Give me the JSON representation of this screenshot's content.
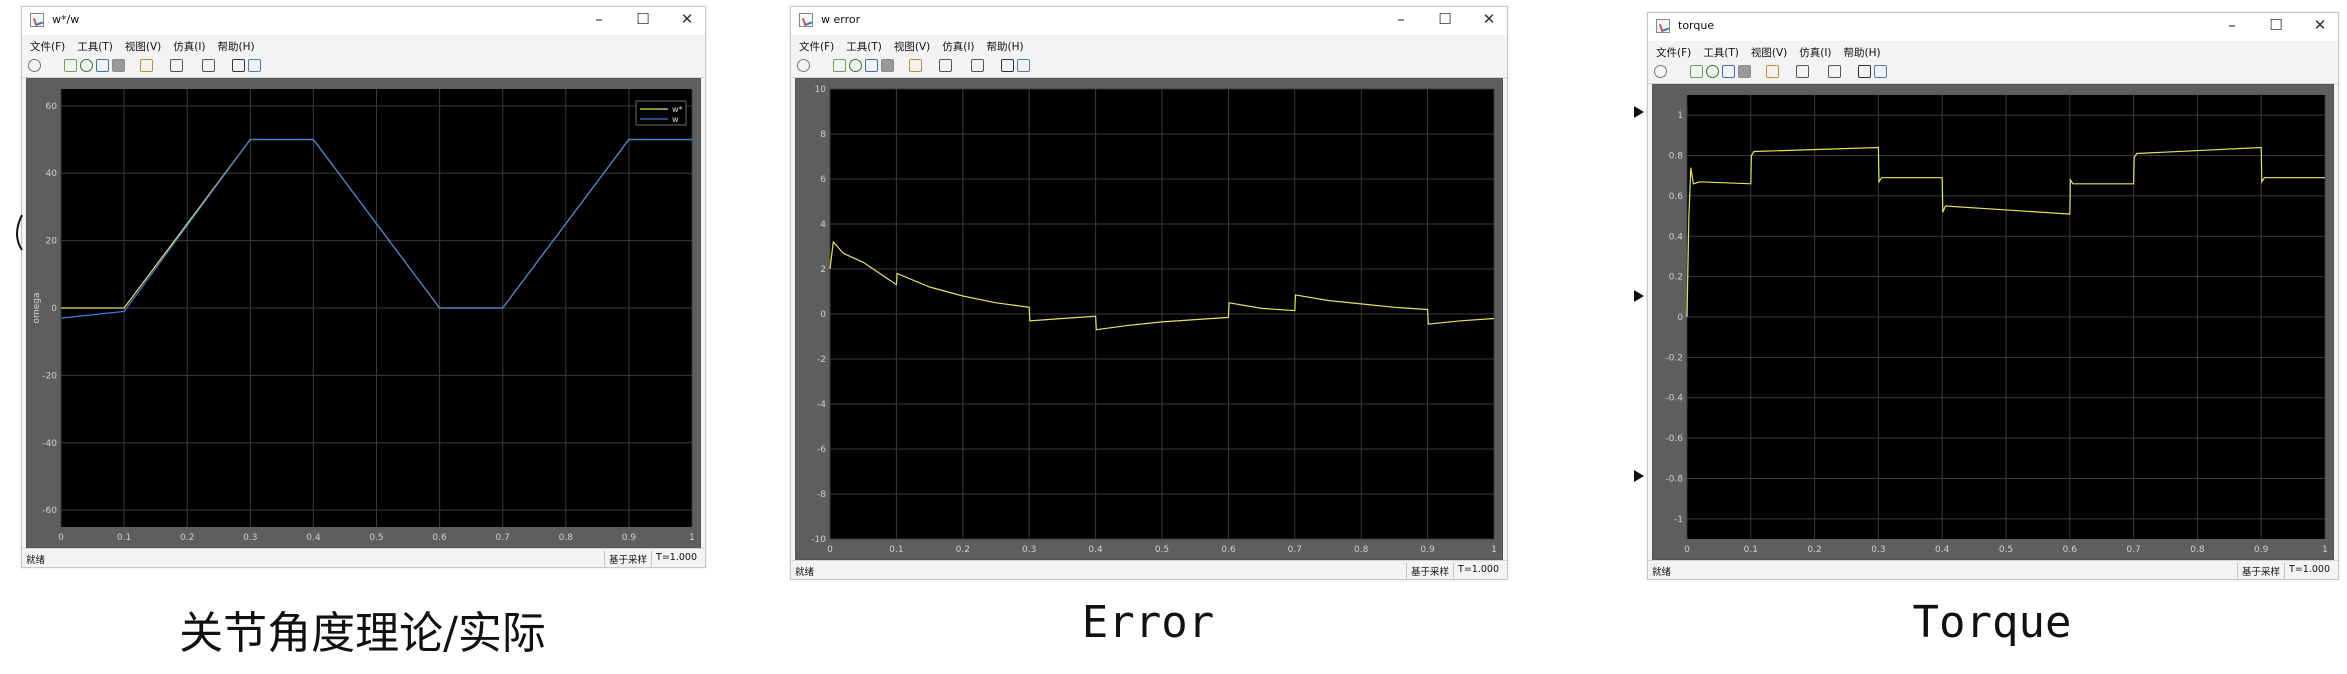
{
  "menu_labels": [
    "文件(F)",
    "工具(T)",
    "视图(V)",
    "仿真(I)",
    "帮助(H)"
  ],
  "status": {
    "left": "就绪",
    "mode": "基于采样",
    "time": "T=1.000"
  },
  "colors": {
    "plot_bg": "#000000",
    "grid": "#3a3a3a",
    "series_yellow": "#e6e35a",
    "series_blue": "#3a7fd5"
  },
  "toolbar_icons": [
    "settings-icon",
    "step-back-icon",
    "run-icon",
    "step-forward-icon",
    "stop-icon",
    "highlight-icon",
    "zoom-icon",
    "autoscale-icon",
    "cursor-measure-icon",
    "edit-icon"
  ],
  "windows": [
    {
      "title": "w*/w",
      "caption": "关节角度理论/实际",
      "chart_data": {
        "type": "line",
        "ylabel": "omega",
        "xlim": [
          0,
          1
        ],
        "ylim": [
          -65,
          65
        ],
        "xticks": [
          "0",
          "0.1",
          "0.2",
          "0.3",
          "0.4",
          "0.5",
          "0.6",
          "0.7",
          "0.8",
          "0.9",
          "1"
        ],
        "yticks": [
          "60",
          "40",
          "20",
          "0",
          "-20",
          "-40",
          "-60"
        ],
        "legend": [
          "w*",
          "w"
        ],
        "legend_position": "top-right",
        "grid": true,
        "series": [
          {
            "name": "w*",
            "color": "#e6e35a",
            "x": [
              0,
              0.1,
              0.3,
              0.4,
              0.6,
              0.7,
              0.9,
              1.0
            ],
            "y": [
              0,
              0,
              50,
              50,
              0,
              0,
              50,
              50
            ]
          },
          {
            "name": "w",
            "color": "#3a7fd5",
            "x": [
              0,
              0.1,
              0.3,
              0.4,
              0.6,
              0.7,
              0.9,
              1.0
            ],
            "y": [
              -3,
              -1,
              50,
              50,
              0,
              0,
              50,
              50
            ]
          }
        ]
      }
    },
    {
      "title": "w error",
      "caption": "Error",
      "chart_data": {
        "type": "line",
        "xlim": [
          0,
          1
        ],
        "ylim": [
          -10,
          10
        ],
        "xticks": [
          "0",
          "0.1",
          "0.2",
          "0.3",
          "0.4",
          "0.5",
          "0.6",
          "0.7",
          "0.8",
          "0.9",
          "1"
        ],
        "yticks": [
          "10",
          "8",
          "6",
          "4",
          "2",
          "0",
          "-2",
          "-4",
          "-6",
          "-8",
          "-10"
        ],
        "grid": true,
        "series": [
          {
            "color": "#e6e35a",
            "x": [
              0,
              0.005,
              0.02,
              0.05,
              0.1,
              0.101,
              0.15,
              0.2,
              0.25,
              0.3,
              0.301,
              0.35,
              0.4,
              0.401,
              0.45,
              0.5,
              0.55,
              0.6,
              0.601,
              0.65,
              0.7,
              0.701,
              0.75,
              0.8,
              0.85,
              0.9,
              0.901,
              0.95,
              1.0
            ],
            "y": [
              2.0,
              3.2,
              2.7,
              2.3,
              1.3,
              1.8,
              1.2,
              0.8,
              0.5,
              0.3,
              -0.3,
              -0.2,
              -0.1,
              -0.7,
              -0.5,
              -0.35,
              -0.25,
              -0.15,
              0.5,
              0.25,
              0.15,
              0.85,
              0.6,
              0.45,
              0.3,
              0.2,
              -0.45,
              -0.3,
              -0.2
            ]
          }
        ]
      }
    },
    {
      "title": "torque",
      "caption": "Torque",
      "chart_data": {
        "type": "line",
        "xlim": [
          0,
          1
        ],
        "ylim": [
          -1.1,
          1.1
        ],
        "xticks": [
          "0",
          "0.1",
          "0.2",
          "0.3",
          "0.4",
          "0.5",
          "0.6",
          "0.7",
          "0.8",
          "0.9",
          "1"
        ],
        "yticks": [
          "1",
          "0.8",
          "0.6",
          "0.4",
          "0.2",
          "0",
          "-0.2",
          "-0.4",
          "-0.6",
          "-0.8",
          "-1"
        ],
        "grid": true,
        "series": [
          {
            "color": "#e6e35a",
            "x": [
              0,
              0.003,
              0.006,
              0.01,
              0.02,
              0.1,
              0.101,
              0.105,
              0.3,
              0.301,
              0.305,
              0.4,
              0.401,
              0.405,
              0.6,
              0.601,
              0.605,
              0.7,
              0.701,
              0.705,
              0.9,
              0.901,
              0.905,
              1.0
            ],
            "y": [
              0,
              0.5,
              0.74,
              0.66,
              0.67,
              0.66,
              0.8,
              0.82,
              0.84,
              0.67,
              0.69,
              0.69,
              0.52,
              0.55,
              0.51,
              0.68,
              0.66,
              0.66,
              0.79,
              0.81,
              0.84,
              0.67,
              0.69,
              0.69
            ]
          }
        ]
      }
    }
  ]
}
